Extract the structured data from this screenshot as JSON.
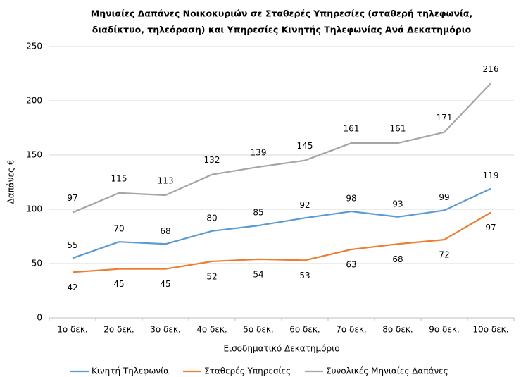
{
  "chart_data": {
    "type": "line",
    "title": [
      "Μηνιαίες Δαπάνες Νοικοκυριών σε Σταθερές Υπηρεσίες (σταθερή τηλεφωνία,",
      "διαδίκτυο, τηλεόραση) και Υπηρεσίες Κινητής Τηλεφωνίας Ανά Δεκατημόριο"
    ],
    "x_label": "Εισοδηματικό Δεκατημόριο",
    "y_label": "Δαπάνες €",
    "categories": [
      "1ο δεκ.",
      "2ο δεκ.",
      "3ο δεκ.",
      "4ο δεκ.",
      "5ο δεκ.",
      "6ο δεκ.",
      "7ο δεκ.",
      "8ο δεκ.",
      "9ο δεκ.",
      "10ο δεκ."
    ],
    "series": [
      {
        "name": "Κινητή Τηλεφωνία",
        "color": "#5b9bd5",
        "values": [
          55,
          70,
          68,
          80,
          85,
          92,
          98,
          93,
          99,
          119
        ]
      },
      {
        "name": "Σταθερές Υπηρεσίες",
        "color": "#ed7d31",
        "values": [
          42,
          45,
          45,
          52,
          54,
          53,
          63,
          68,
          72,
          97
        ]
      },
      {
        "name": "Συνολικές Μηνιαίες Δαπάνες",
        "color": "#a5a5a5",
        "values": [
          97,
          115,
          113,
          132,
          139,
          145,
          161,
          161,
          171,
          216
        ]
      }
    ],
    "ylim": [
      0,
      250
    ],
    "yticks": [
      0,
      50,
      100,
      150,
      200,
      250
    ],
    "grid": true,
    "legend": "bottom"
  }
}
